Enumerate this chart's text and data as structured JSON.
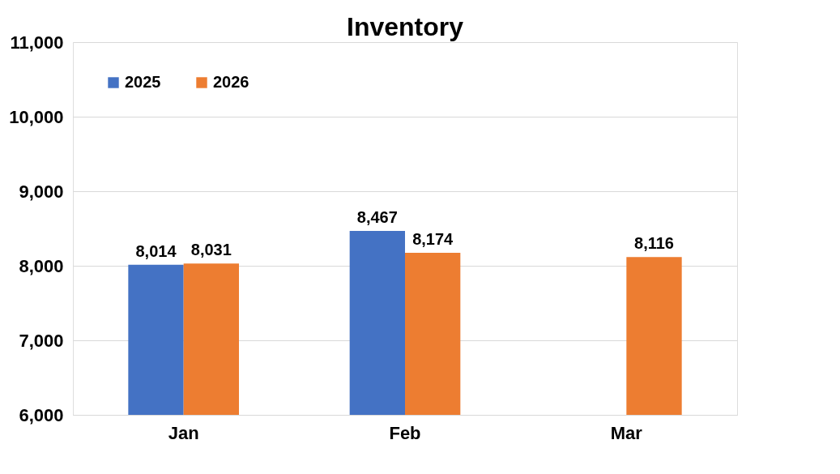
{
  "chart_data": {
    "type": "bar",
    "title": "Inventory",
    "categories": [
      "Jan",
      "Feb",
      "Mar"
    ],
    "series": [
      {
        "name": "2025",
        "color": "#4472c4",
        "values": [
          8014,
          8467,
          null
        ],
        "value_labels": [
          "8,014",
          "8,467",
          null
        ]
      },
      {
        "name": "2026",
        "color": "#ed7d31",
        "values": [
          8031,
          8174,
          8116
        ],
        "value_labels": [
          "8,031",
          "8,174",
          "8,116"
        ]
      }
    ],
    "ylim": [
      6000,
      11000
    ],
    "yticks": [
      {
        "value": 6000,
        "label": "6,000"
      },
      {
        "value": 7000,
        "label": "7,000"
      },
      {
        "value": 8000,
        "label": "8,000"
      },
      {
        "value": 9000,
        "label": "9,000"
      },
      {
        "value": 10000,
        "label": "10,000"
      },
      {
        "value": 11000,
        "label": "11,000"
      }
    ],
    "grid": "y",
    "legend": "top left"
  }
}
